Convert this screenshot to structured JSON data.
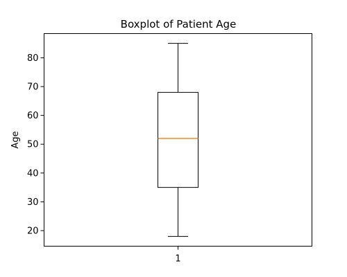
{
  "chart_data": {
    "type": "box",
    "title": "Boxplot of Patient Age",
    "xlabel": "",
    "ylabel": "Age",
    "categories": [
      "1"
    ],
    "ylim": [
      14.6,
      88.4
    ],
    "yticks": [
      20,
      30,
      40,
      50,
      60,
      70,
      80
    ],
    "boxes": [
      {
        "category": "1",
        "whisker_low": 18,
        "q1": 35,
        "median": 52,
        "q3": 68,
        "whisker_high": 85
      }
    ],
    "grid": false,
    "colors": {
      "box": "#000000",
      "median": "#ff7f0e",
      "whisker": "#000000"
    }
  }
}
